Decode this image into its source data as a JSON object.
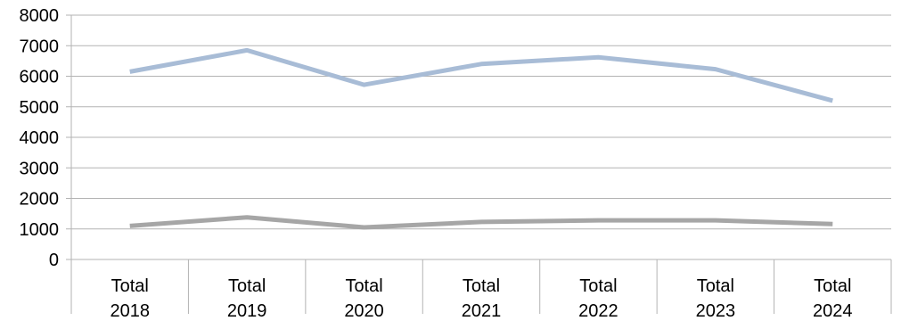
{
  "chart_data": {
    "type": "line",
    "categories": [
      [
        "Total",
        "2018"
      ],
      [
        "Total",
        "2019"
      ],
      [
        "Total",
        "2020"
      ],
      [
        "Total",
        "2021"
      ],
      [
        "Total",
        "2022"
      ],
      [
        "Total",
        "2023"
      ],
      [
        "Total",
        "2024"
      ]
    ],
    "series": [
      {
        "values": [
          6150,
          6850,
          5720,
          6400,
          6620,
          6230,
          5200
        ],
        "color": "#a8bcd6"
      },
      {
        "values": [
          1100,
          1380,
          1050,
          1230,
          1280,
          1280,
          1160
        ],
        "color": "#a6a6a6"
      }
    ],
    "ylim": [
      0,
      8000
    ],
    "yticks": [
      0,
      1000,
      2000,
      3000,
      4000,
      5000,
      6000,
      7000,
      8000
    ],
    "grid": true,
    "legend": "none",
    "title": "",
    "xlabel": "",
    "ylabel": ""
  }
}
